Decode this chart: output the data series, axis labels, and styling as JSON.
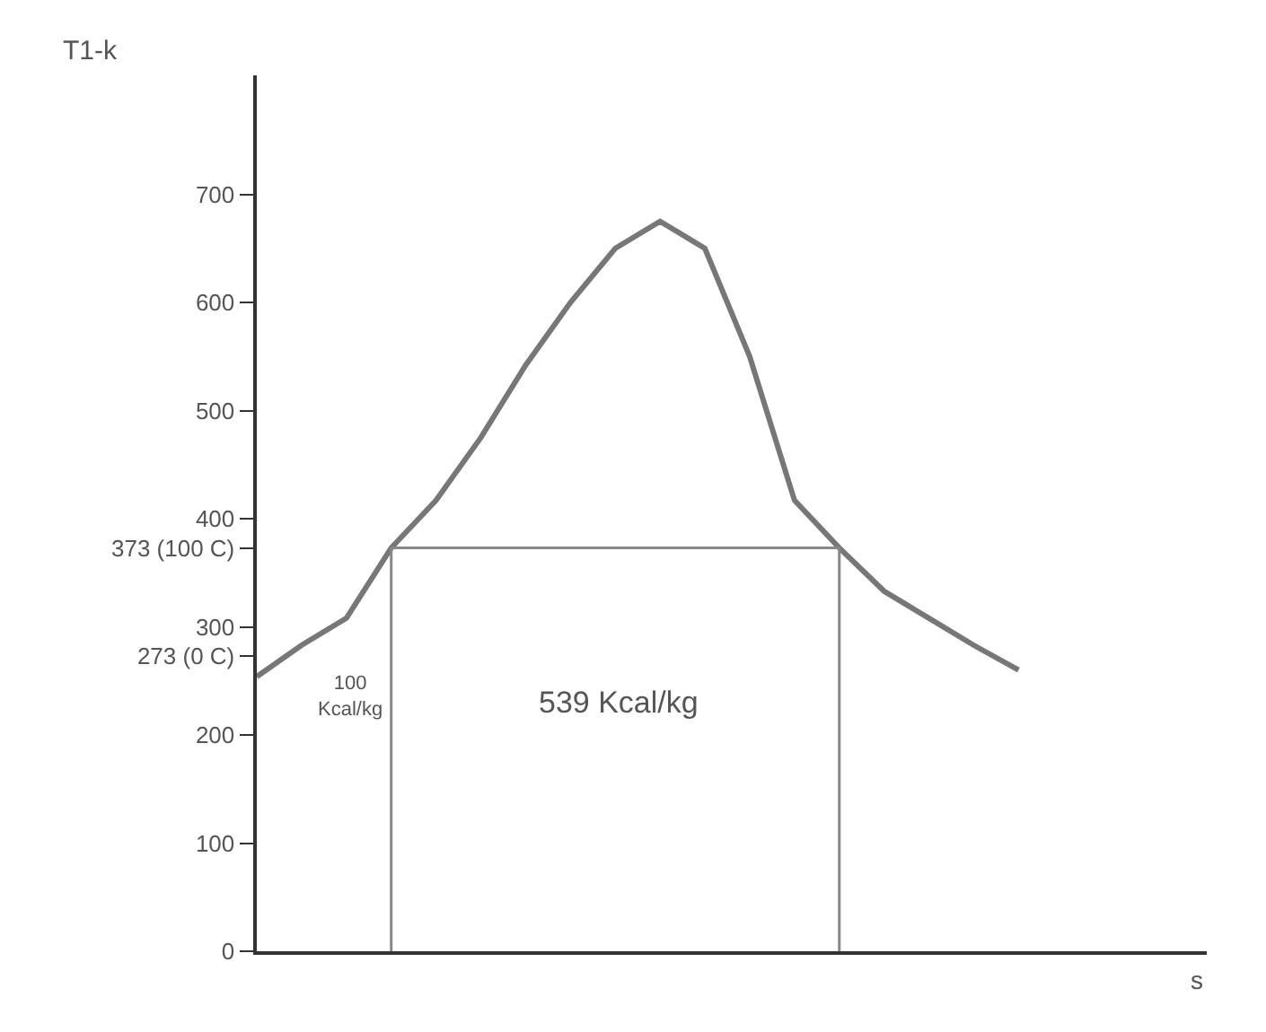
{
  "chart_data": {
    "type": "line",
    "ylabel": "T1-k",
    "xlabel": "s",
    "categories": [
      null,
      null,
      null,
      null,
      null,
      null,
      null,
      null,
      null,
      null,
      null,
      null,
      null,
      null,
      null,
      null,
      null,
      null,
      null,
      null,
      null,
      null
    ],
    "series": [
      {
        "color": "#777777",
        "values": [
          254,
          283,
          308,
          373,
          417,
          475,
          542,
          600,
          650,
          675,
          650,
          550,
          417,
          373,
          333,
          308,
          283,
          260,
          null,
          null,
          null,
          null
        ]
      },
      {
        "color": "#888888",
        "values": [
          null,
          null,
          null,
          373,
          373,
          373,
          373,
          373,
          373,
          373,
          373,
          373,
          373,
          373,
          null,
          null,
          null,
          null,
          null,
          null,
          null,
          null
        ]
      }
    ],
    "ylim": [
      0,
      810
    ],
    "yticks": [
      0,
      100,
      200,
      {
        "value": 273,
        "label": "273 (0 C)"
      },
      300,
      {
        "value": 373,
        "label": "373 (100 C)"
      },
      400,
      500,
      600,
      700
    ],
    "grid": false,
    "legend": false,
    "marker": "none",
    "annotations": [
      "539 Kcal/kg",
      "100\nKcal/kg"
    ]
  }
}
